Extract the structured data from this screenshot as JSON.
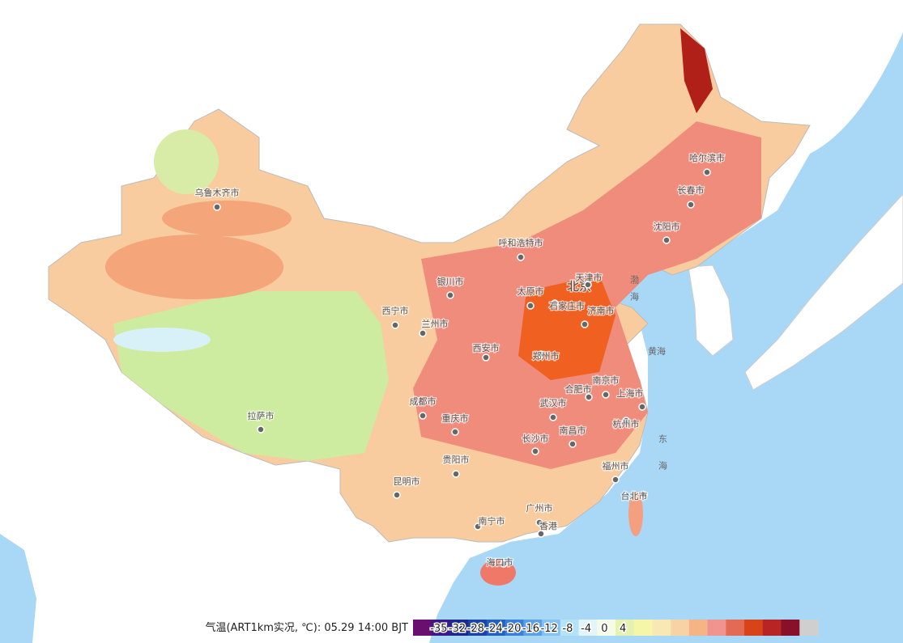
{
  "map": {
    "cities": [
      "乌鲁木齐市",
      "哈尔滨市",
      "长春市",
      "沈阳市",
      "呼和浩特市",
      "银川市",
      "北京",
      "天津市",
      "太原市",
      "石家庄市",
      "济南市",
      "西宁市",
      "兰州市",
      "西安市",
      "郑州市",
      "南京市",
      "合肥市",
      "上海市",
      "武汉市",
      "成都市",
      "重庆市",
      "杭州市",
      "长沙市",
      "南昌市",
      "贵阳市",
      "福州市",
      "昆明市",
      "台北市",
      "广州市",
      "南宁市",
      "香港",
      "海口市",
      "拉萨市"
    ],
    "seas": [
      "渤海",
      "黄海",
      "东海"
    ],
    "legend": {
      "title": "气温(ART1km实况, ℃): 05.29 14:00 BJT",
      "ticks": [
        -35,
        -32,
        -28,
        -24,
        -20,
        -16,
        -12,
        -8,
        -4,
        0,
        4
      ],
      "colors": [
        "#6a0f6f",
        "#3b1a86",
        "#1d2a8c",
        "#1a44a6",
        "#2160c0",
        "#3b7fd6",
        "#5aa0e6",
        "#84c2f0",
        "#b4e2f6",
        "#e2f6fa",
        "#f6fbe8",
        "#e4f4b0",
        "#f6f6a8",
        "#f8e8b4",
        "#f8d2a4",
        "#f6b486",
        "#f09490",
        "#e46a56",
        "#d84418",
        "#b82424",
        "#881028",
        "#cfcfcf"
      ]
    }
  }
}
